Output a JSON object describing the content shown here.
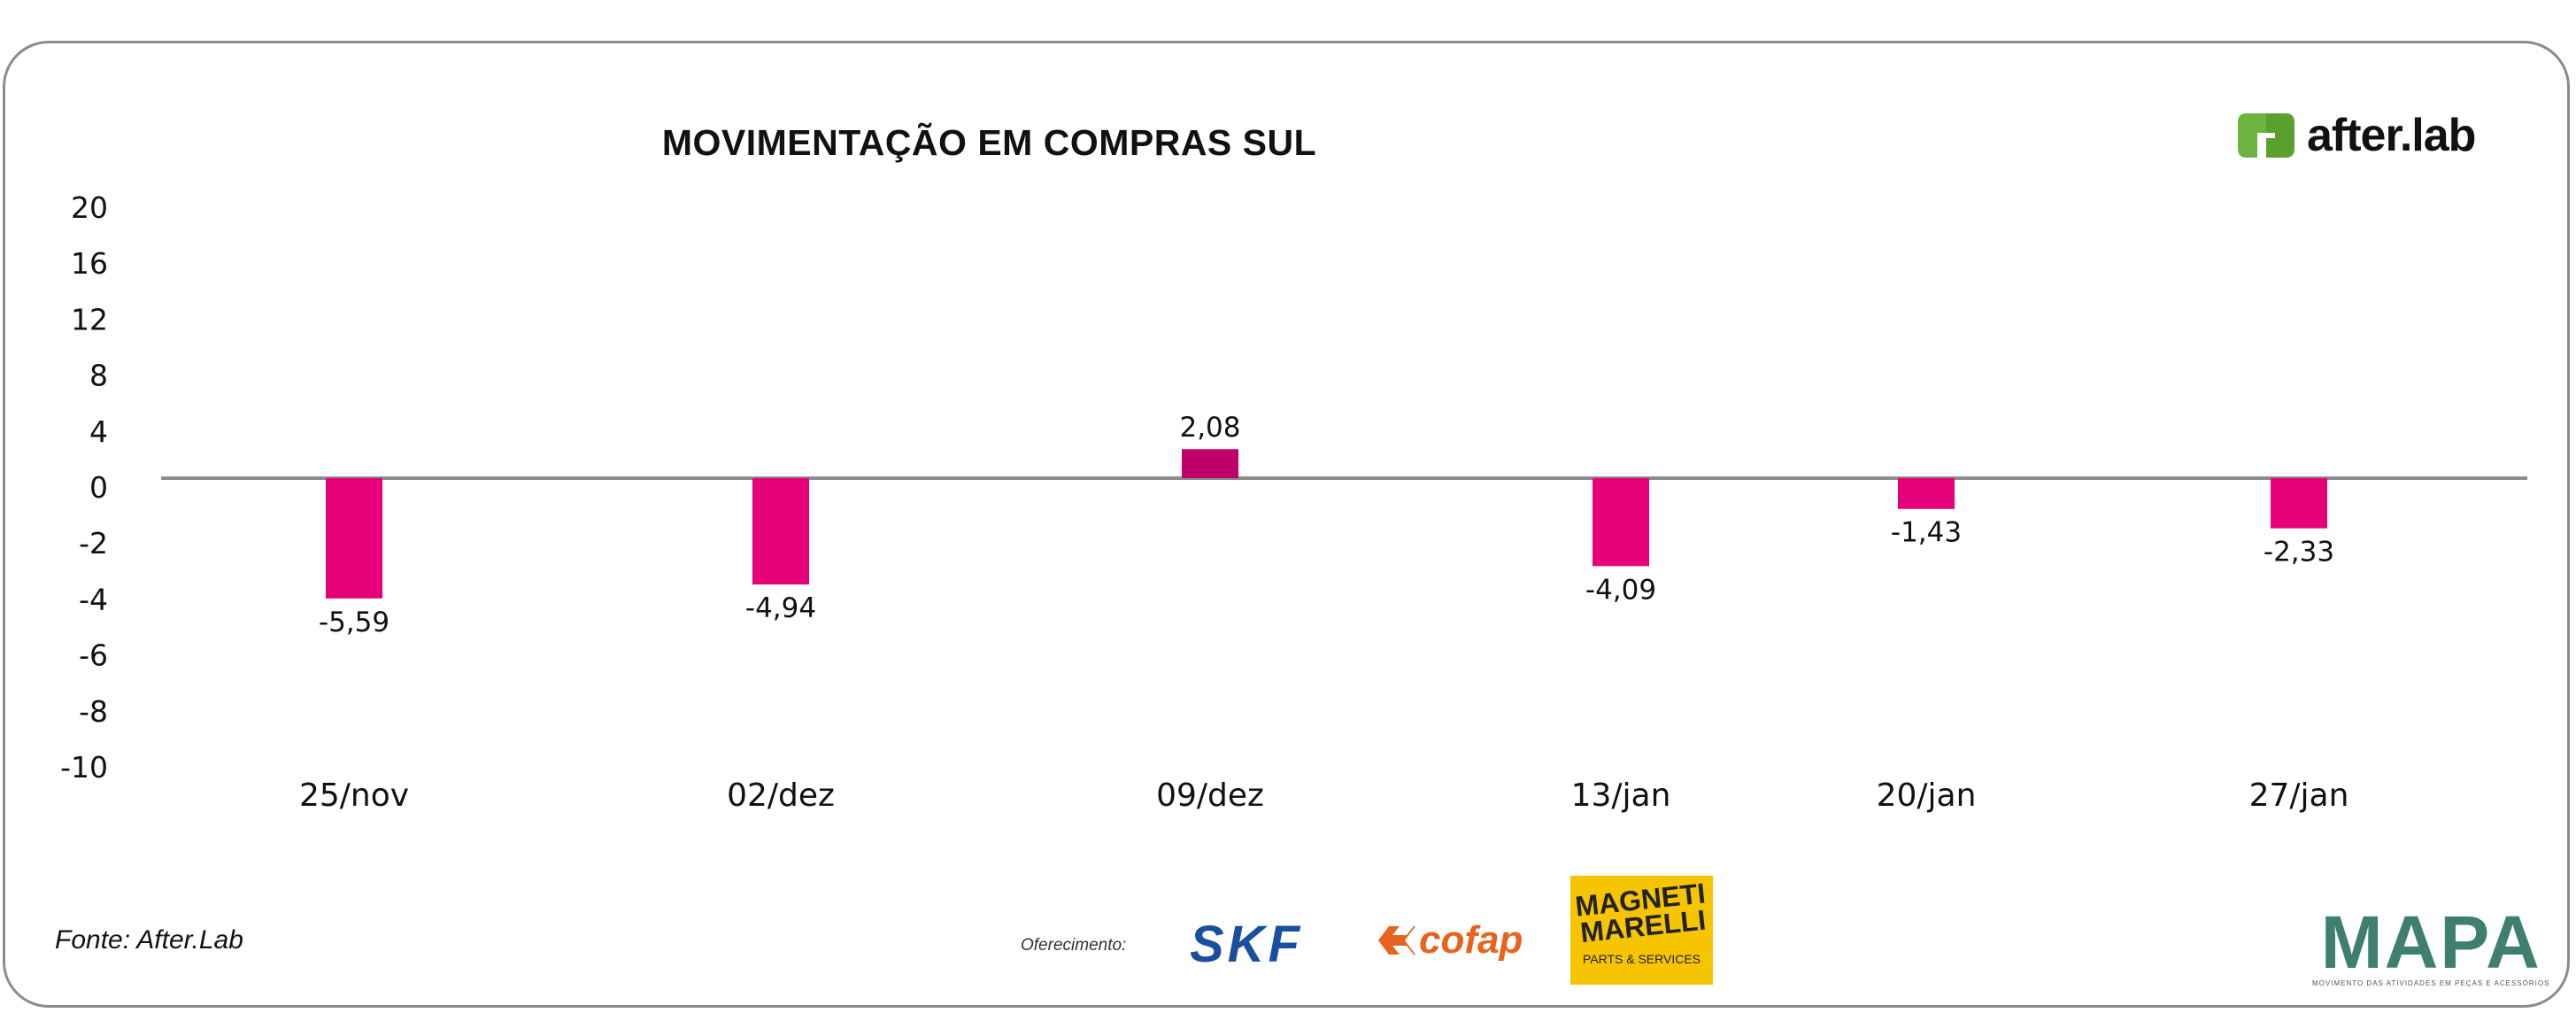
{
  "chart_data": {
    "type": "bar",
    "title": "MOVIMENTAÇÃO EM COMPRAS SUL",
    "categories": [
      "25/nov",
      "02/dez",
      "09/dez",
      "13/jan",
      "20/jan",
      "27/jan"
    ],
    "values": [
      -5.59,
      -4.94,
      2.08,
      -4.09,
      -1.43,
      -2.33
    ],
    "data_labels": [
      "-5,59",
      "-4,94",
      "2,08",
      "-4,09",
      "-1,43",
      "-2,33"
    ],
    "bar_colors": [
      "#e6007a",
      "#e6007a",
      "#c0006a",
      "#e6007a",
      "#e6007a",
      "#e6007a"
    ],
    "y_ticks": [
      "20",
      "16",
      "12",
      "8",
      "4",
      "0",
      "-2",
      "-4",
      "-6",
      "-8",
      "-10"
    ],
    "xlabel": "",
    "ylabel": "",
    "grid": false,
    "legend": "none"
  },
  "footer": {
    "source": "Fonte: After.Lab",
    "sponsor_label": "Oferecimento:"
  },
  "logos": {
    "afterlab": "after.lab",
    "skf": "SKF",
    "cofap": "cofap",
    "magneti_line1": "MAGNETI",
    "magneti_line2": "MARELLI",
    "magneti_sub": "PARTS & SERVICES",
    "mapa": "MAPA",
    "mapa_sub": "MOVIMENTO DAS ATIVIDADES EM PEÇAS E ACESSÓRIOS"
  },
  "colors": {
    "bar": "#e6007a",
    "bar_highlight": "#c0006a",
    "axis": "#8c8c8c",
    "afterlab_green": "#6cb33f"
  }
}
